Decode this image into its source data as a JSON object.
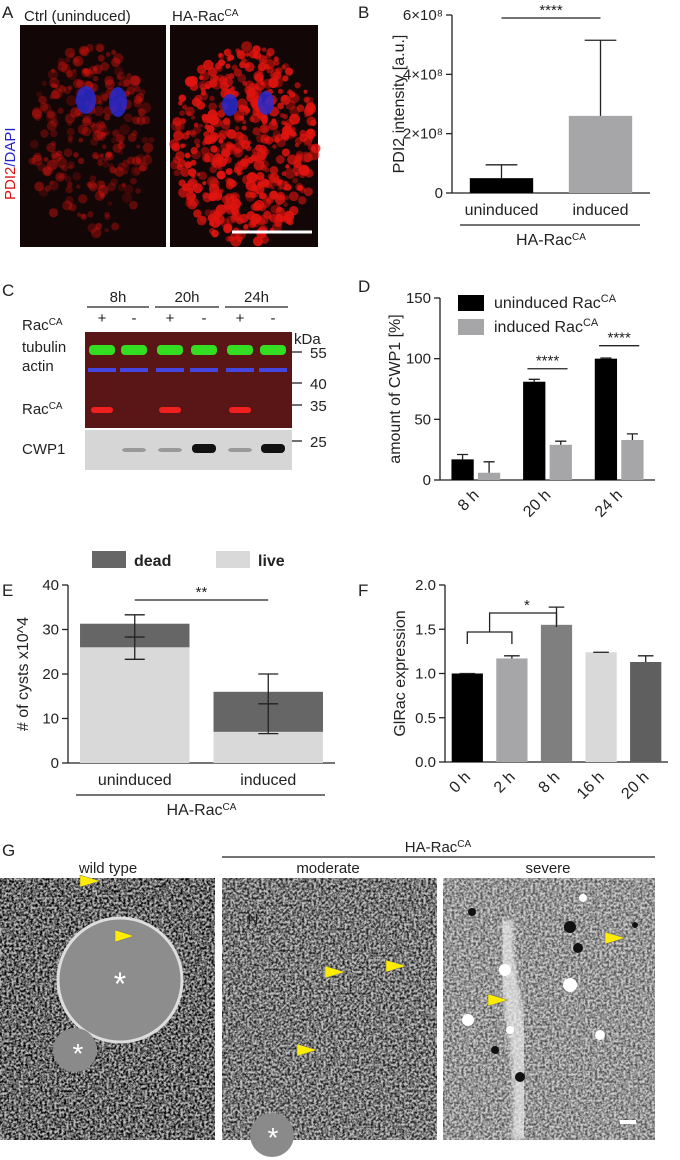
{
  "panel_letters": [
    "A",
    "B",
    "C",
    "D",
    "E",
    "F",
    "G"
  ],
  "panel_a": {
    "left_title": "Ctrl (uninduced)",
    "right_title": {
      "text": "HA-Rac",
      "sup": "CA"
    },
    "stain": {
      "red": "PDI2",
      "blue": "/DAPI"
    }
  },
  "panel_c": {
    "timepoints": [
      "8h",
      "20h",
      "24h"
    ],
    "signs": [
      "+",
      "-",
      "+",
      "-",
      "+",
      "-"
    ],
    "row_label": {
      "text": "Rac",
      "sup": "CA"
    },
    "tubulin": "tubulin",
    "actin": "actin",
    "band_label": {
      "text": "Rac",
      "sup": "CA"
    },
    "cwp1": "CWP1",
    "kda": "kDa",
    "markers": [
      "55",
      "40",
      "35",
      "25"
    ]
  },
  "panel_g": {
    "titles": [
      "wild type",
      "moderate",
      "severe"
    ],
    "group": {
      "text": "HA-Rac",
      "sup": "CA"
    },
    "labels": [
      "*",
      "*",
      "N",
      "*"
    ]
  },
  "chart_data": [
    {
      "type": "bar",
      "ylabel": "PDI2 intensity [a.u.]",
      "categories": [
        "uninduced",
        "induced"
      ],
      "values": [
        50000000,
        260000000
      ],
      "errors": [
        45000000,
        255000000
      ],
      "colors": [
        "#000000",
        "#a6a6a8"
      ],
      "ylim": [
        0,
        600000000
      ],
      "yticks": [
        0,
        {
          "value": 200000000,
          "label": "2×10⁸"
        },
        {
          "value": 400000000,
          "label": "4×10⁸"
        },
        {
          "value": 600000000,
          "label": "6×10⁸"
        }
      ],
      "group_label": {
        "text": "HA-Rac",
        "sup": "CA"
      },
      "significance": "****"
    },
    {
      "type": "grouped-bar",
      "ylabel": "amount of CWP1 [%]",
      "categories": [
        "8 h",
        "20 h",
        "24 h"
      ],
      "series": [
        {
          "name": "uninduced Rac",
          "name_sup": "CA",
          "color": "#000000",
          "values": [
            17,
            81,
            100
          ],
          "errors": [
            4,
            2,
            0.5
          ]
        },
        {
          "name": "induced Rac",
          "name_sup": "CA",
          "color": "#a6a6a8",
          "values": [
            6,
            29,
            33
          ],
          "errors": [
            9,
            3,
            5
          ]
        }
      ],
      "ylim": [
        0,
        150
      ],
      "yticks": [
        0,
        50,
        100,
        150
      ],
      "legend": "top-right",
      "significance": [
        "****",
        "****"
      ]
    },
    {
      "type": "stacked-bar",
      "ylabel": "# of cysts x10^4",
      "categories": [
        "uninduced",
        "induced"
      ],
      "series": [
        {
          "name": "dead",
          "color": "#666666",
          "values": [
            5.3,
            9
          ]
        },
        {
          "name": "live",
          "color": "#d9d9d9",
          "values": [
            26,
            7
          ]
        }
      ],
      "error_bars": {
        "values": [
          28.3,
          13.3
        ],
        "errors": [
          5,
          6.7
        ]
      },
      "ylim": [
        0,
        40
      ],
      "yticks": [
        0,
        10,
        20,
        30,
        40
      ],
      "legend": "top",
      "group_label": {
        "text": "HA-Rac",
        "sup": "CA"
      },
      "significance": "**"
    },
    {
      "type": "bar",
      "ylabel": "GlRac expression",
      "categories": [
        "0 h",
        "2 h",
        "8 h",
        "16 h",
        "20 h"
      ],
      "values": [
        1.0,
        1.17,
        1.55,
        1.24,
        1.13
      ],
      "errors": [
        0,
        0.03,
        0.2,
        0,
        0.07
      ],
      "colors": [
        "#000000",
        "#a6a6a8",
        "#7f7f7f",
        "#d9d9d9",
        "#5f5f5f"
      ],
      "ylim": [
        0,
        2.0
      ],
      "yticks": [
        {
          "value": 0,
          "label": "0.0"
        },
        {
          "value": 0.5,
          "label": "0.5"
        },
        {
          "value": 1.0,
          "label": "1.0"
        },
        {
          "value": 1.5,
          "label": "1.5"
        },
        {
          "value": 2.0,
          "label": "2.0"
        }
      ],
      "significance": "*"
    }
  ]
}
